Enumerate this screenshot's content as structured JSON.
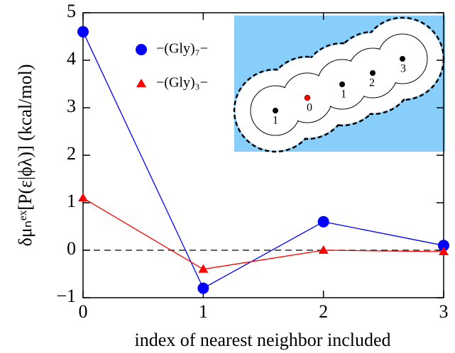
{
  "chart_data": {
    "type": "line",
    "x_label": "index of nearest neighbor included",
    "y_label": "δμₙᵉˣ[P(ε|ϕλ)] (kcal/mol)",
    "x": [
      0,
      1,
      2,
      3
    ],
    "series": [
      {
        "name": "−(Gly)₇−",
        "color": "#0000ff",
        "marker": "circle",
        "values": [
          4.6,
          -0.8,
          0.6,
          0.1
        ]
      },
      {
        "name": "−(Gly)₃−",
        "color": "#ff0000",
        "marker": "triangle",
        "values": [
          1.1,
          -0.4,
          0.0,
          -0.03
        ]
      }
    ],
    "xlim": [
      0,
      3
    ],
    "ylim": [
      -1,
      5
    ],
    "xticks": [
      0,
      1,
      2,
      3
    ],
    "yticks": [
      {
        "value": -1,
        "label": "−1"
      },
      0,
      1,
      2,
      3,
      4,
      5
    ],
    "reference_line": 0,
    "inset_labels": [
      "1",
      "0",
      "1",
      "2",
      "3"
    ]
  }
}
